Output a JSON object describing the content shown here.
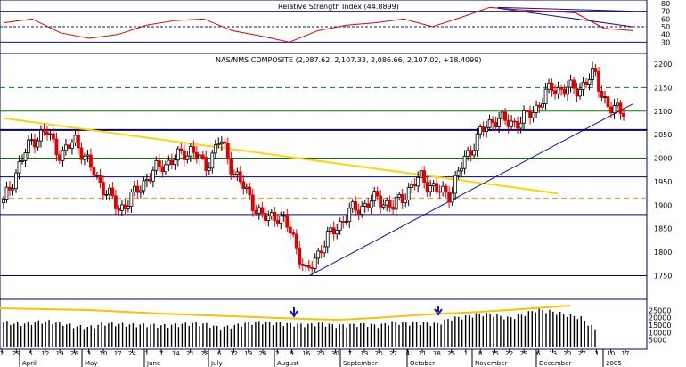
{
  "chart_data": [
    {
      "type": "line",
      "title": "Relative Strength Index (44.8899)",
      "ylim": [
        20,
        80
      ],
      "yticks": [
        "80",
        "70",
        "60",
        "50",
        "40",
        "30"
      ],
      "reference_levels": [
        70,
        50,
        30
      ],
      "x": [
        "2004-03-29",
        "2004-04-12",
        "2004-04-26",
        "2004-05-10",
        "2004-05-24",
        "2004-06-07",
        "2004-06-21",
        "2004-07-05",
        "2004-07-19",
        "2004-08-02",
        "2004-08-16",
        "2004-08-30",
        "2004-09-13",
        "2004-09-27",
        "2004-10-11",
        "2004-10-25",
        "2004-11-08",
        "2004-11-22",
        "2004-12-06",
        "2004-12-20",
        "2004-12-27",
        "2005-01-03",
        "2005-01-10"
      ],
      "series": [
        {
          "values": [
            55,
            60,
            42,
            35,
            40,
            52,
            58,
            60,
            45,
            38,
            30,
            45,
            52,
            55,
            60,
            50,
            62,
            75,
            72,
            70,
            68,
            48,
            45
          ]
        }
      ],
      "trendlines": [
        {
          "from": [
            "2004-11-08",
            75
          ],
          "to": [
            "2005-01-10",
            70
          ]
        },
        {
          "from": [
            "2004-11-08",
            74
          ],
          "to": [
            "2005-01-10",
            50
          ]
        }
      ]
    },
    {
      "type": "candlestick",
      "title": "NAS/NMS COMPOSITE (2,087.62, 2,107.33, 2,086.66, 2,107.02, +18.4099)",
      "ylim": [
        1730,
        2200
      ],
      "yticks": [
        "2200",
        "2150",
        "2100",
        "2050",
        "2000",
        "1950",
        "1900",
        "1850",
        "1800",
        "1750"
      ],
      "xticks": [
        "2",
        "29",
        "5",
        "12",
        "19",
        "26",
        "3",
        "10",
        "17",
        "24",
        "1",
        "7",
        "14",
        "21",
        "28",
        "6",
        "12",
        "19",
        "26",
        "2",
        "9",
        "16",
        "23",
        "30",
        "7",
        "13",
        "20",
        "27",
        "4",
        "11",
        "18",
        "25",
        "1",
        "8",
        "15",
        "22",
        "29",
        "6",
        "13",
        "20",
        "27",
        "3",
        "10",
        "17"
      ],
      "months": [
        "April",
        "May",
        "June",
        "July",
        "August",
        "September",
        "October",
        "November",
        "December",
        "2005"
      ],
      "close": [
        1905,
        1980,
        2040,
        2055,
        2005,
        2040,
        1980,
        1935,
        1890,
        1920,
        1960,
        1985,
        2000,
        2020,
        1980,
        2040,
        1970,
        1920,
        1870,
        1880,
        1840,
        1750,
        1810,
        1850,
        1885,
        1900,
        1915,
        1895,
        1930,
        1960,
        1930,
        1925,
        2000,
        2050,
        2085,
        2075,
        2080,
        2110,
        2150,
        2145,
        2150,
        2180,
        2100,
        2107
      ],
      "horizontal_levels": [
        {
          "value": 2150,
          "style": "dashed-green"
        },
        {
          "value": 2100,
          "style": "solid-green"
        },
        {
          "value": 2060,
          "style": "thick-navy"
        },
        {
          "value": 2000,
          "style": "solid-green"
        },
        {
          "value": 1960,
          "style": "navy"
        },
        {
          "value": 1915,
          "style": "dashed-orange"
        },
        {
          "value": 1880,
          "style": "navy"
        },
        {
          "value": 1750,
          "style": "navy"
        }
      ],
      "trendlines": [
        {
          "color": "#ffd400",
          "from": [
            "2004-03-22",
            2085
          ],
          "to": [
            "2004-12-06",
            1925
          ]
        },
        {
          "color": "#1010a0",
          "from": [
            "2004-08-12",
            1750
          ],
          "to": [
            "2005-01-10",
            2115
          ]
        }
      ]
    },
    {
      "type": "bar",
      "title": "",
      "ylim": [
        0,
        30000
      ],
      "yticks": [
        "25000",
        "20000",
        "15000",
        "10000",
        "5000"
      ],
      "values": [
        17000,
        15500,
        16500,
        17500,
        16000,
        14000,
        13500,
        16000,
        15500,
        15000,
        15000,
        14500,
        15000,
        16000,
        15500,
        13000,
        14500,
        16500,
        17000,
        16000,
        15500,
        15000,
        16000,
        14500,
        15000,
        15500,
        14500,
        17000,
        16000,
        16500,
        15500,
        19500,
        20500,
        22500,
        22000,
        19500,
        22000,
        25500,
        24000,
        22000,
        20000,
        12000
      ]
    }
  ],
  "colors": {
    "up_candle": "#000000",
    "down_candle": "#e00000",
    "rsi_line": "#e00000",
    "volume_bar": "#000000",
    "panel_border": "#000080"
  }
}
